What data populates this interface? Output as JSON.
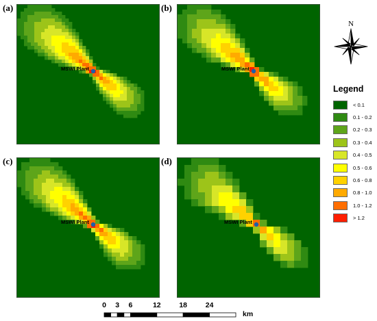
{
  "figure": {
    "panels": [
      {
        "label": "(a)",
        "plant_label": "MSWI Plant",
        "peak_class": 9,
        "pixel_size": 5
      },
      {
        "label": "(b)",
        "plant_label": "MSWI Plant",
        "peak_class": 9,
        "pixel_size": 7
      },
      {
        "label": "(c)",
        "plant_label": "MSWI Plant",
        "peak_class": 9,
        "pixel_size": 6
      },
      {
        "label": "(d)",
        "plant_label": "MSWI Plant",
        "peak_class": 8,
        "pixel_size": 10
      }
    ]
  },
  "north_arrow": {
    "label": "N"
  },
  "legend": {
    "title": "Legend",
    "classes": [
      {
        "label": "< 0.1",
        "color": "#006400"
      },
      {
        "label": "0.1 - 0.2",
        "color": "#2f8a12"
      },
      {
        "label": "0.2 - 0.3",
        "color": "#5ea51a"
      },
      {
        "label": "0.3 - 0.4",
        "color": "#9dc419"
      },
      {
        "label": "0.4 - 0.5",
        "color": "#d8e628"
      },
      {
        "label": "0.5 - 0.6",
        "color": "#ffff00"
      },
      {
        "label": "0.6 - 0.8",
        "color": "#ffd200"
      },
      {
        "label": "0.8 - 1.0",
        "color": "#ffaa00"
      },
      {
        "label": "1.0 - 1.2",
        "color": "#ff6e00"
      },
      {
        "label": "> 1.2",
        "color": "#ff1e00"
      }
    ]
  },
  "scale_bar": {
    "unit": "km",
    "ticks": [
      "0",
      "3",
      "6",
      "12",
      "18",
      "24"
    ],
    "tick_values": [
      0,
      3,
      6,
      12,
      18,
      24
    ],
    "max_value": 30
  },
  "plant_marker_color": "#1f5fa8"
}
